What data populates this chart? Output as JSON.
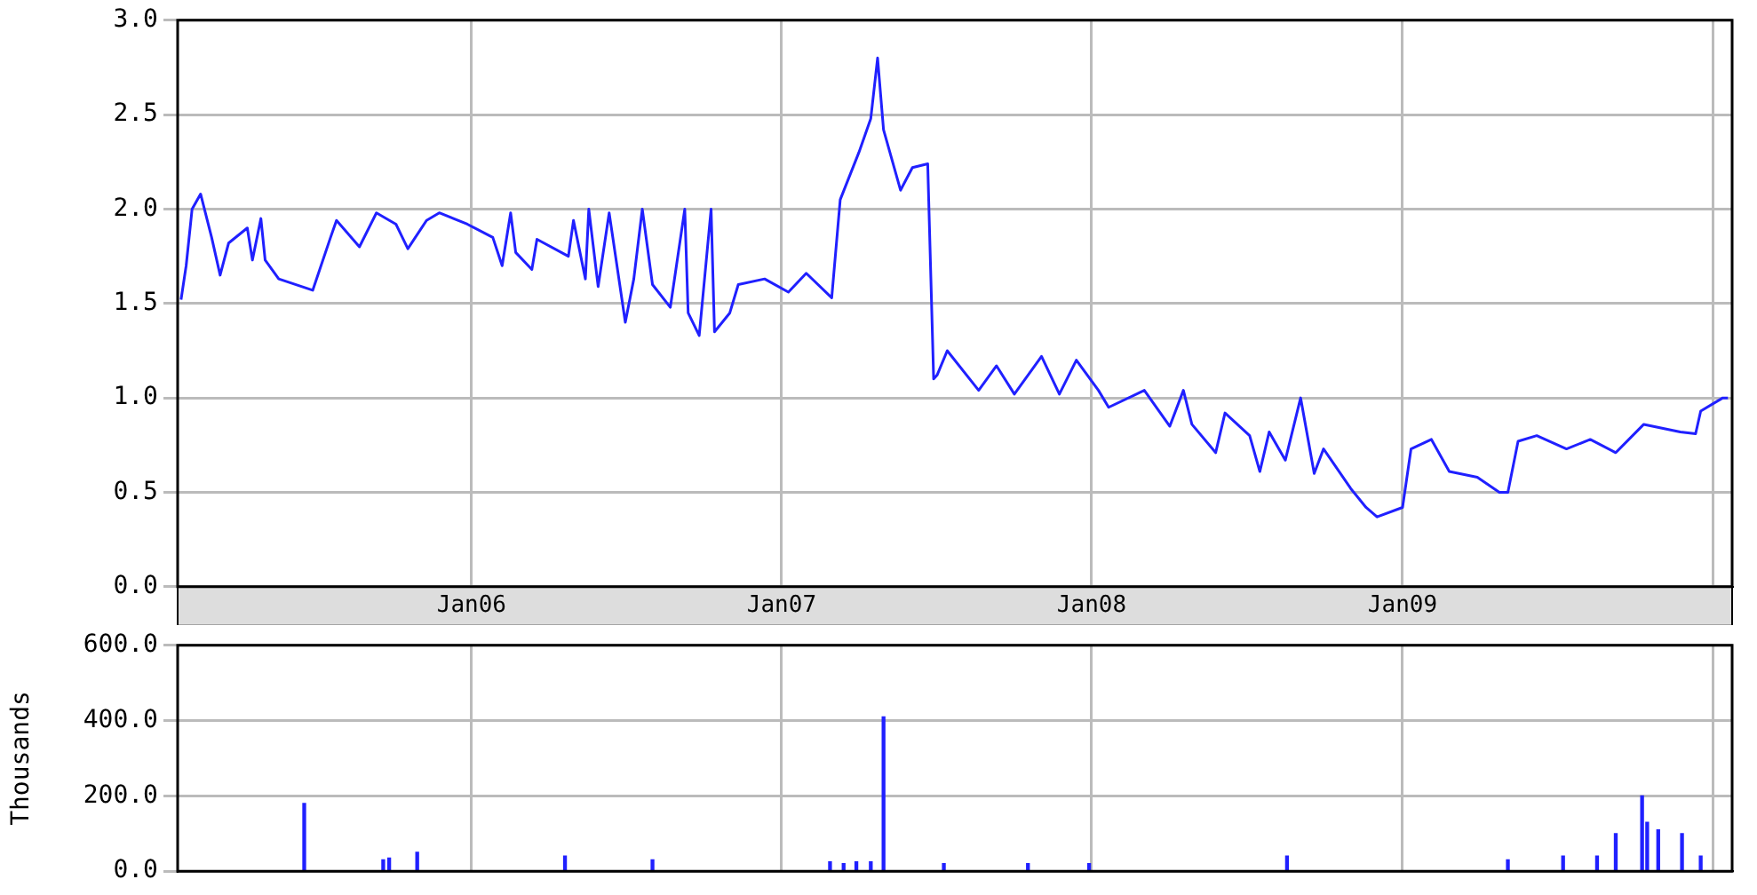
{
  "chart_data": [
    {
      "type": "line",
      "xlim": [
        "2005-01-20",
        "2010-01-24"
      ],
      "xticks": [
        {
          "value": "2006-01-01",
          "label": "Jan06"
        },
        {
          "value": "2007-01-01",
          "label": "Jan07"
        },
        {
          "value": "2008-01-01",
          "label": "Jan08"
        },
        {
          "value": "2009-01-01",
          "label": "Jan09"
        },
        {
          "value": "2010-01-01",
          "label": null
        }
      ],
      "ylim": [
        0,
        3
      ],
      "yticks": [
        {
          "value": 0,
          "label": "0.0"
        },
        {
          "value": 0.5,
          "label": "0.5"
        },
        {
          "value": 1,
          "label": "1.0"
        },
        {
          "value": 1.5,
          "label": "1.5"
        },
        {
          "value": 2,
          "label": "2.0"
        },
        {
          "value": 2.5,
          "label": "2.5"
        },
        {
          "value": 3,
          "label": "3.0"
        }
      ],
      "grid": true,
      "marker": "none",
      "line_style": "solid",
      "series": [
        {
          "color": "#2020ff",
          "x": [
            "2005-01-24",
            "2005-01-30",
            "2005-02-06",
            "2005-02-16",
            "2005-03-01",
            "2005-03-11",
            "2005-03-21",
            "2005-04-12",
            "2005-04-18",
            "2005-04-28",
            "2005-05-03",
            "2005-05-19",
            "2005-06-28",
            "2005-07-19",
            "2005-07-26",
            "2005-08-22",
            "2005-09-11",
            "2005-10-04",
            "2005-10-18",
            "2005-11-09",
            "2005-11-24",
            "2005-12-27",
            "2006-01-26",
            "2006-02-06",
            "2006-02-16",
            "2006-02-22",
            "2006-03-13",
            "2006-03-19",
            "2006-04-25",
            "2006-05-01",
            "2006-05-15",
            "2006-05-19",
            "2006-05-30",
            "2006-06-12",
            "2006-07-01",
            "2006-07-11",
            "2006-07-21",
            "2006-08-02",
            "2006-08-23",
            "2006-09-09",
            "2006-09-13",
            "2006-09-26",
            "2006-10-10",
            "2006-10-14",
            "2006-11-01",
            "2006-11-11",
            "2006-12-12",
            "2007-01-09",
            "2007-01-30",
            "2007-03-01",
            "2007-03-11",
            "2007-04-02",
            "2007-04-16",
            "2007-04-24",
            "2007-05-01",
            "2007-05-21",
            "2007-06-04",
            "2007-06-22",
            "2007-06-29",
            "2007-07-03",
            "2007-07-15",
            "2007-08-21",
            "2007-09-11",
            "2007-10-02",
            "2007-11-03",
            "2007-11-24",
            "2007-12-14",
            "2008-01-09",
            "2008-01-21",
            "2008-03-03",
            "2008-04-02",
            "2008-04-18",
            "2008-04-28",
            "2008-05-26",
            "2008-06-06",
            "2008-07-05",
            "2008-07-17",
            "2008-07-28",
            "2008-08-16",
            "2008-09-03",
            "2008-09-19",
            "2008-09-30",
            "2008-11-01",
            "2008-11-19",
            "2008-12-02",
            "2009-01-01",
            "2009-01-11",
            "2009-02-04",
            "2009-02-25",
            "2009-03-30",
            "2009-04-25",
            "2009-05-05",
            "2009-05-17",
            "2009-06-08",
            "2009-07-13",
            "2009-08-10",
            "2009-09-09",
            "2009-10-12",
            "2009-11-24",
            "2009-12-12",
            "2009-12-18",
            "2010-01-13",
            "2010-01-19"
          ],
          "values": [
            1.52,
            1.7,
            2.0,
            2.08,
            1.85,
            1.65,
            1.82,
            1.9,
            1.73,
            1.95,
            1.73,
            1.63,
            1.57,
            1.85,
            1.94,
            1.8,
            1.98,
            1.92,
            1.79,
            1.94,
            1.98,
            1.92,
            1.85,
            1.7,
            1.98,
            1.77,
            1.68,
            1.84,
            1.75,
            1.94,
            1.63,
            2.0,
            1.59,
            1.98,
            1.4,
            1.63,
            2.0,
            1.6,
            1.48,
            2.0,
            1.45,
            1.33,
            2.0,
            1.35,
            1.45,
            1.6,
            1.63,
            1.56,
            1.66,
            1.53,
            2.05,
            2.3,
            2.48,
            2.8,
            2.42,
            2.1,
            2.22,
            2.24,
            1.1,
            1.12,
            1.25,
            1.04,
            1.17,
            1.02,
            1.22,
            1.02,
            1.2,
            1.04,
            0.95,
            1.04,
            0.85,
            1.04,
            0.86,
            0.71,
            0.92,
            0.8,
            0.61,
            0.82,
            0.67,
            1.0,
            0.6,
            0.73,
            0.52,
            0.42,
            0.37,
            0.42,
            0.73,
            0.78,
            0.61,
            0.58,
            0.5,
            0.5,
            0.77,
            0.8,
            0.73,
            0.78,
            0.71,
            0.86,
            0.82,
            0.81,
            0.93,
            1.0,
            1.0
          ]
        }
      ]
    },
    {
      "type": "bar",
      "ylabel": "Thousands",
      "tick_labels": "y",
      "xlim": [
        "2005-01-20",
        "2010-01-24"
      ],
      "xticks": [
        {
          "value": "2006-01-01",
          "label": null
        },
        {
          "value": "2007-01-01",
          "label": null
        },
        {
          "value": "2008-01-01",
          "label": null
        },
        {
          "value": "2009-01-01",
          "label": null
        },
        {
          "value": "2010-01-01",
          "label": null
        }
      ],
      "ylim": [
        0,
        600
      ],
      "yticks": [
        {
          "value": 0,
          "label": "0.0"
        },
        {
          "value": 200,
          "label": "200.0"
        },
        {
          "value": 400,
          "label": "400.0"
        },
        {
          "value": 600,
          "label": "600.0"
        }
      ],
      "grid": true,
      "series": [
        {
          "color": "#2020ff",
          "x": [
            "2005-06-18",
            "2005-09-19",
            "2005-09-26",
            "2005-10-29",
            "2006-04-21",
            "2006-08-02",
            "2007-02-27",
            "2007-03-15",
            "2007-03-30",
            "2007-04-16",
            "2007-05-01",
            "2007-07-11",
            "2007-10-18",
            "2007-12-29",
            "2008-08-18",
            "2009-05-05",
            "2009-07-09",
            "2009-08-18",
            "2009-09-09",
            "2009-10-10",
            "2009-10-16",
            "2009-10-29",
            "2009-11-26",
            "2009-12-18"
          ],
          "values": [
            180,
            30,
            35,
            50,
            40,
            30,
            25,
            20,
            25,
            25,
            410,
            20,
            20,
            20,
            40,
            30,
            40,
            40,
            100,
            200,
            130,
            110,
            100,
            40
          ]
        }
      ]
    }
  ]
}
